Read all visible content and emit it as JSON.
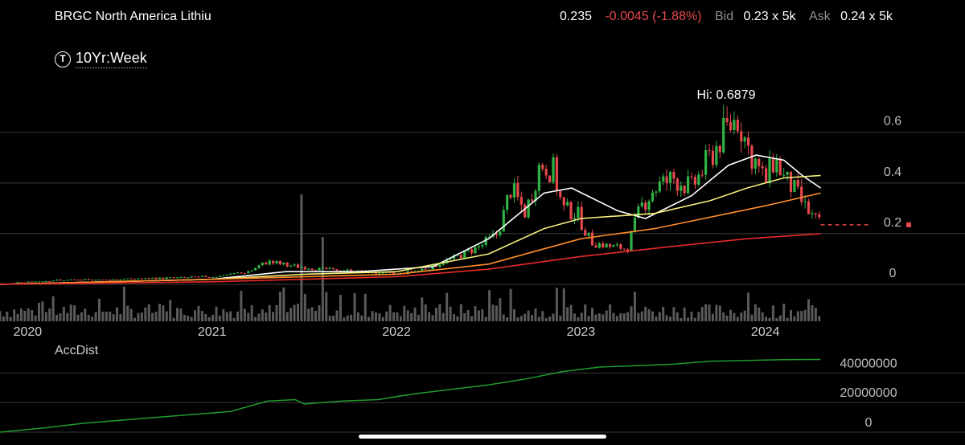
{
  "header": {
    "symbol_title": "BRGC North America Lithiu",
    "last": "0.235",
    "change": "-0.0045 (-1.88%)",
    "bid_label": "Bid",
    "bid": "0.23 x 5k",
    "ask_label": "Ask",
    "ask": "0.24 x 5k"
  },
  "timeframe": {
    "icon": "T",
    "label": "10Yr:Week"
  },
  "colors": {
    "up": "#2fb344",
    "down": "#e5484d",
    "ma1": "#ffffff",
    "ma2": "#f5ef7a",
    "ma3": "#ff8c2a",
    "ma4": "#e82a2a",
    "accdist": "#1f9b2e",
    "volume": "#5a5a5a",
    "grid": "#3a3a3a"
  },
  "chart_data": [
    {
      "type": "candlestick",
      "title": "",
      "annotation": "Hi: 0.6879",
      "x_ticks": [
        "2020",
        "2021",
        "2022",
        "2023",
        "2024"
      ],
      "x_range": [
        2019.85,
        2024.35
      ],
      "y_ticks": [
        "0.6",
        "0.4",
        "0.2",
        "0"
      ],
      "ylim": [
        0,
        0.6879
      ],
      "last_price": 0.235,
      "moving_averages_shown": 4,
      "price_path": [
        [
          2019.85,
          0.0
        ],
        [
          2020.1,
          0.015
        ],
        [
          2020.5,
          0.02
        ],
        [
          2021.0,
          0.03
        ],
        [
          2021.2,
          0.05
        ],
        [
          2021.3,
          0.09
        ],
        [
          2021.45,
          0.07
        ],
        [
          2021.6,
          0.06
        ],
        [
          2021.8,
          0.05
        ],
        [
          2022.0,
          0.04
        ],
        [
          2022.15,
          0.06
        ],
        [
          2022.3,
          0.1
        ],
        [
          2022.45,
          0.15
        ],
        [
          2022.55,
          0.2
        ],
        [
          2022.62,
          0.38
        ],
        [
          2022.7,
          0.28
        ],
        [
          2022.78,
          0.48
        ],
        [
          2022.85,
          0.45
        ],
        [
          2022.9,
          0.3
        ],
        [
          2022.98,
          0.28
        ],
        [
          2023.05,
          0.17
        ],
        [
          2023.15,
          0.15
        ],
        [
          2023.25,
          0.14
        ],
        [
          2023.32,
          0.3
        ],
        [
          2023.4,
          0.38
        ],
        [
          2023.5,
          0.42
        ],
        [
          2023.6,
          0.38
        ],
        [
          2023.7,
          0.5
        ],
        [
          2023.78,
          0.6
        ],
        [
          2023.85,
          0.66
        ],
        [
          2023.9,
          0.55
        ],
        [
          2024.0,
          0.4
        ],
        [
          2024.05,
          0.5
        ],
        [
          2024.1,
          0.42
        ],
        [
          2024.15,
          0.38
        ],
        [
          2024.2,
          0.32
        ],
        [
          2024.25,
          0.27
        ],
        [
          2024.3,
          0.235
        ]
      ],
      "moving_averages": [
        {
          "points": [
            [
              2019.85,
              0
            ],
            [
              2021.0,
              0.02
            ],
            [
              2021.4,
              0.05
            ],
            [
              2021.8,
              0.05
            ],
            [
              2022.2,
              0.07
            ],
            [
              2022.5,
              0.18
            ],
            [
              2022.8,
              0.36
            ],
            [
              2022.95,
              0.38
            ],
            [
              2023.2,
              0.29
            ],
            [
              2023.35,
              0.26
            ],
            [
              2023.6,
              0.35
            ],
            [
              2023.8,
              0.47
            ],
            [
              2023.95,
              0.51
            ],
            [
              2024.1,
              0.49
            ],
            [
              2024.2,
              0.43
            ],
            [
              2024.3,
              0.38
            ]
          ]
        },
        {
          "points": [
            [
              2019.85,
              0
            ],
            [
              2021.0,
              0.02
            ],
            [
              2021.5,
              0.04
            ],
            [
              2022.0,
              0.05
            ],
            [
              2022.5,
              0.12
            ],
            [
              2022.8,
              0.22
            ],
            [
              2023.0,
              0.26
            ],
            [
              2023.4,
              0.28
            ],
            [
              2023.7,
              0.33
            ],
            [
              2023.9,
              0.38
            ],
            [
              2024.1,
              0.42
            ],
            [
              2024.3,
              0.43
            ]
          ]
        },
        {
          "points": [
            [
              2019.85,
              0
            ],
            [
              2021.0,
              0.02
            ],
            [
              2022.0,
              0.04
            ],
            [
              2022.5,
              0.08
            ],
            [
              2022.8,
              0.14
            ],
            [
              2023.0,
              0.18
            ],
            [
              2023.4,
              0.22
            ],
            [
              2023.8,
              0.28
            ],
            [
              2024.0,
              0.31
            ],
            [
              2024.3,
              0.36
            ]
          ]
        },
        {
          "points": [
            [
              2019.85,
              0
            ],
            [
              2021.0,
              0.01
            ],
            [
              2022.0,
              0.03
            ],
            [
              2022.5,
              0.06
            ],
            [
              2023.0,
              0.11
            ],
            [
              2023.5,
              0.15
            ],
            [
              2023.9,
              0.18
            ],
            [
              2024.3,
              0.2
            ]
          ]
        }
      ]
    },
    {
      "type": "line",
      "name": "AccDist",
      "y_ticks": [
        "40000000",
        "20000000",
        "0"
      ],
      "ylim": [
        0,
        50000000
      ],
      "x": [
        2019.85,
        2020.1,
        2020.3,
        2020.6,
        2020.9,
        2021.1,
        2021.3,
        2021.45,
        2021.5,
        2021.7,
        2021.9,
        2022.1,
        2022.3,
        2022.5,
        2022.7,
        2022.9,
        2023.1,
        2023.3,
        2023.5,
        2023.7,
        2023.9,
        2024.1,
        2024.3
      ],
      "values": [
        0,
        3000000,
        6000000,
        9000000,
        12000000,
        14000000,
        21000000,
        22000000,
        19000000,
        21000000,
        22000000,
        26000000,
        29000000,
        32000000,
        36000000,
        41000000,
        44000000,
        45000000,
        46000000,
        48000000,
        48500000,
        49000000,
        49200000
      ]
    }
  ]
}
